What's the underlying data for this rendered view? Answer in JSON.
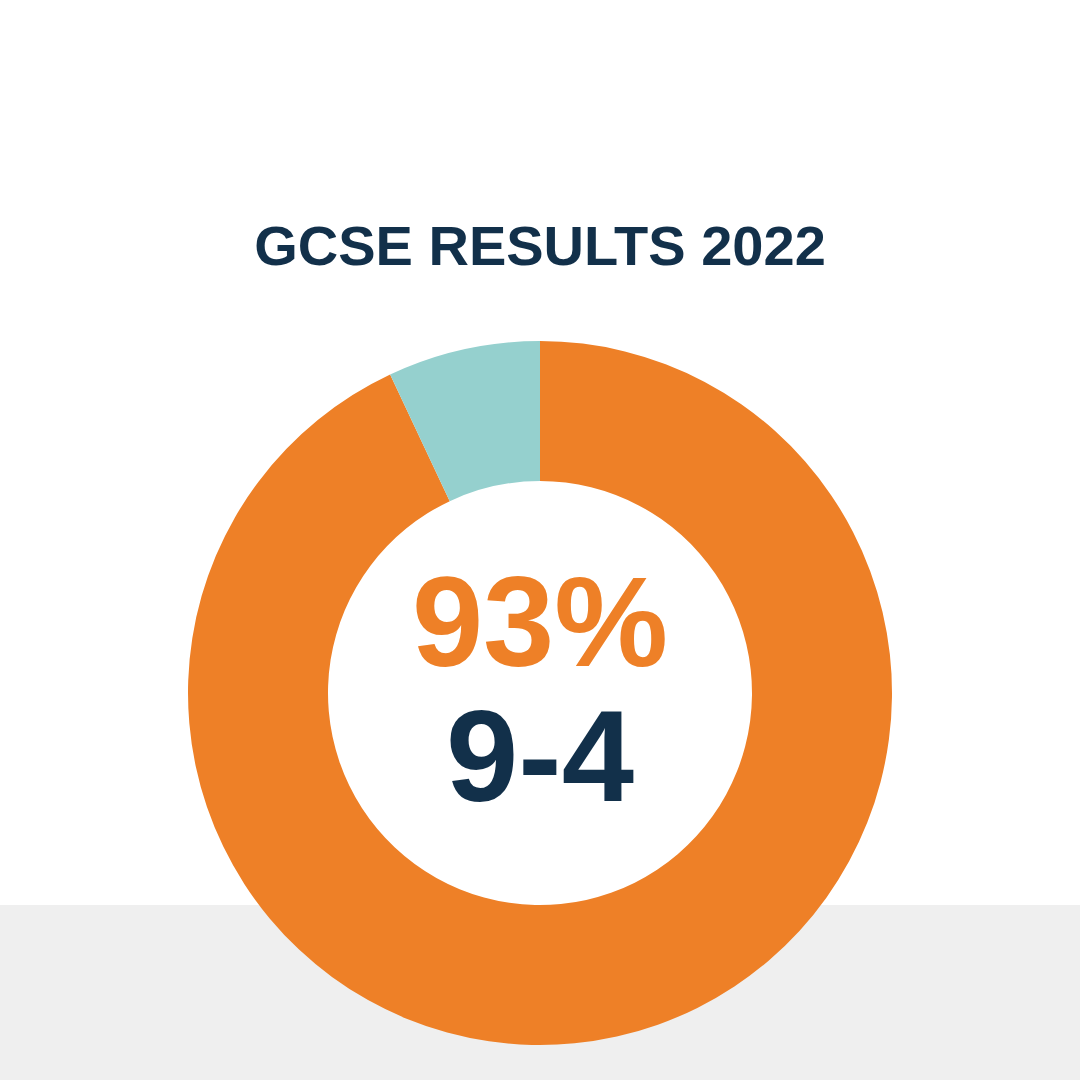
{
  "chart_data": {
    "type": "donut",
    "title": "GCSE RESULTS 2022",
    "categories": [
      "9-4",
      null
    ],
    "values": [
      93,
      7
    ],
    "colors": [
      "#ee8027",
      "#95d0ce"
    ],
    "value_labels": [
      "93%",
      null
    ]
  }
}
